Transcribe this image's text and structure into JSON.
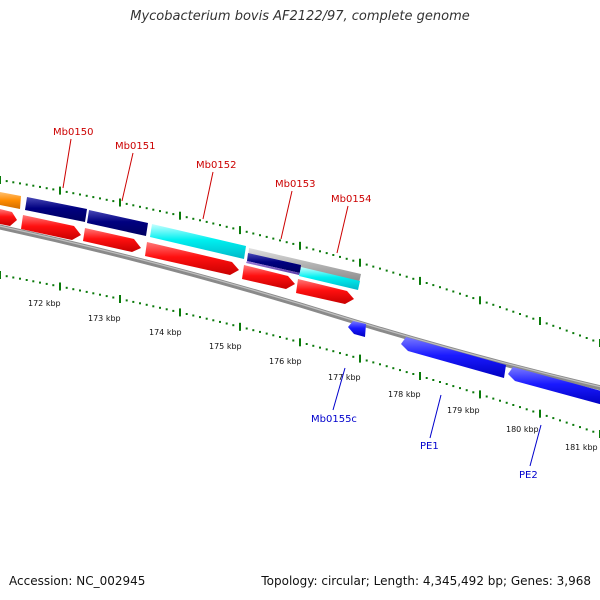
{
  "title": "Mycobacterium bovis AF2122/97, complete genome",
  "footer": {
    "accession": "Accession: NC_002945",
    "topology": "Topology: circular; Length: 4,345,492 bp; Genes: 3,968"
  },
  "genes_forward": [
    {
      "label": "Mb0150",
      "color": "#cc0000"
    },
    {
      "label": "Mb0151",
      "color": "#cc0000"
    },
    {
      "label": "Mb0152",
      "color": "#cc0000"
    },
    {
      "label": "Mb0153",
      "color": "#cc0000"
    },
    {
      "label": "Mb0154",
      "color": "#cc0000"
    }
  ],
  "genes_reverse": [
    {
      "label": "Mb0155c",
      "color": "#0000cc"
    },
    {
      "label": "PE1",
      "color": "#0000cc"
    },
    {
      "label": "PE2",
      "color": "#0000cc"
    }
  ],
  "scale_labels": [
    "172 kbp",
    "173 kbp",
    "174 kbp",
    "175 kbp",
    "176 kbp",
    "177 kbp",
    "178 kbp",
    "179 kbp",
    "180 kbp",
    "181 kbp"
  ],
  "colors": {
    "backbone": "#8a8a8a",
    "cds_forward": "#ff0000",
    "cds_reverse": "#0000ff",
    "feature_navy": "#000080",
    "feature_cyan": "#00ffff",
    "feature_orange": "#ff8c00",
    "feature_grey": "#aaaaaa",
    "tick": "#0a7a0a"
  }
}
